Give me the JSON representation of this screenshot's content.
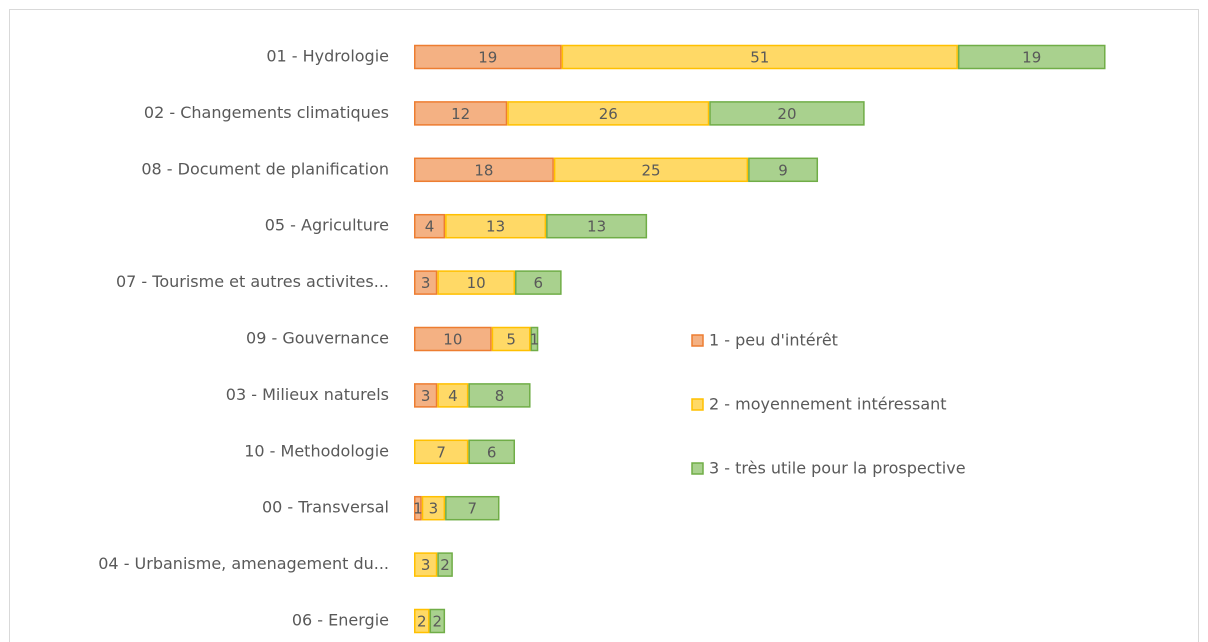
{
  "chart_data": {
    "type": "stacked-barh",
    "categories": [
      "01 - Hydrologie",
      "02 - Changements climatiques",
      "08 - Document de planification",
      "05 - Agriculture",
      "07 - Tourisme et autres activites...",
      "09 - Gouvernance",
      "03 - Milieux naturels",
      "10 - Methodologie",
      "00 - Transversal",
      "04 - Urbanisme, amenagement du...",
      "06 - Energie"
    ],
    "series": [
      {
        "name": "1 - peu d'intérêt",
        "color": "#f4b183",
        "edge": "#ed7d31",
        "values": [
          19,
          12,
          18,
          4,
          3,
          10,
          3,
          null,
          1,
          null,
          null
        ]
      },
      {
        "name": "2 - moyennement intéressant",
        "color": "#ffd966",
        "edge": "#ffc000",
        "values": [
          51,
          26,
          25,
          13,
          10,
          5,
          4,
          7,
          3,
          3,
          2
        ]
      },
      {
        "name": "3 - très utile pour la prospective",
        "color": "#a9d18e",
        "edge": "#70ad47",
        "values": [
          19,
          20,
          9,
          13,
          6,
          1,
          8,
          6,
          7,
          2,
          2
        ]
      }
    ]
  }
}
